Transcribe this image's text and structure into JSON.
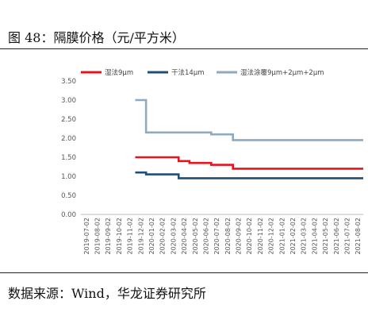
{
  "figure": {
    "title": "图 48：隔膜价格（元/平方米）",
    "source": "数据来源：Wind，华龙证券研究所"
  },
  "chart_data": {
    "type": "line",
    "x": [
      "2019-07-02",
      "2019-08-02",
      "2019-09-02",
      "2019-10-02",
      "2019-11-02",
      "2019-12-02",
      "2020-01-02",
      "2020-02-02",
      "2020-03-02",
      "2020-04-02",
      "2020-05-02",
      "2020-06-02",
      "2020-07-02",
      "2020-08-02",
      "2020-09-02",
      "2020-10-02",
      "2020-11-02",
      "2020-12-02",
      "2021-01-02",
      "2021-02-02",
      "2021-03-02",
      "2021-04-02",
      "2021-05-02",
      "2021-06-02",
      "2021-07-02",
      "2021-08-02"
    ],
    "series": [
      {
        "name": "湿法9μm",
        "color": "#e8141c",
        "values": [
          null,
          null,
          null,
          null,
          null,
          1.5,
          1.5,
          1.5,
          1.5,
          1.4,
          1.35,
          1.35,
          1.3,
          1.3,
          1.2,
          1.2,
          1.2,
          1.2,
          1.2,
          1.2,
          1.2,
          1.2,
          1.2,
          1.2,
          1.2,
          1.2
        ]
      },
      {
        "name": "干法14μm",
        "color": "#1f4e79",
        "values": [
          null,
          null,
          null,
          null,
          null,
          1.1,
          1.05,
          1.05,
          1.05,
          0.95,
          0.95,
          0.95,
          0.95,
          0.95,
          0.95,
          0.95,
          0.95,
          0.95,
          0.95,
          0.95,
          0.95,
          0.95,
          0.95,
          0.95,
          0.95,
          0.95
        ]
      },
      {
        "name": "湿法涂覆9μm+2μm+2μm",
        "color": "#8eaabf",
        "values": [
          null,
          null,
          null,
          null,
          null,
          3.0,
          2.15,
          2.15,
          2.15,
          2.15,
          2.15,
          2.15,
          2.1,
          2.1,
          1.95,
          1.95,
          1.95,
          1.95,
          1.95,
          1.95,
          1.95,
          1.95,
          1.95,
          1.95,
          1.95,
          1.95
        ]
      }
    ],
    "ylim": [
      0,
      3.5
    ],
    "yticks": [
      "0.00",
      "0.50",
      "1.00",
      "1.50",
      "2.00",
      "2.50",
      "3.00",
      "3.50"
    ],
    "grid": false,
    "legend_position": "top"
  }
}
